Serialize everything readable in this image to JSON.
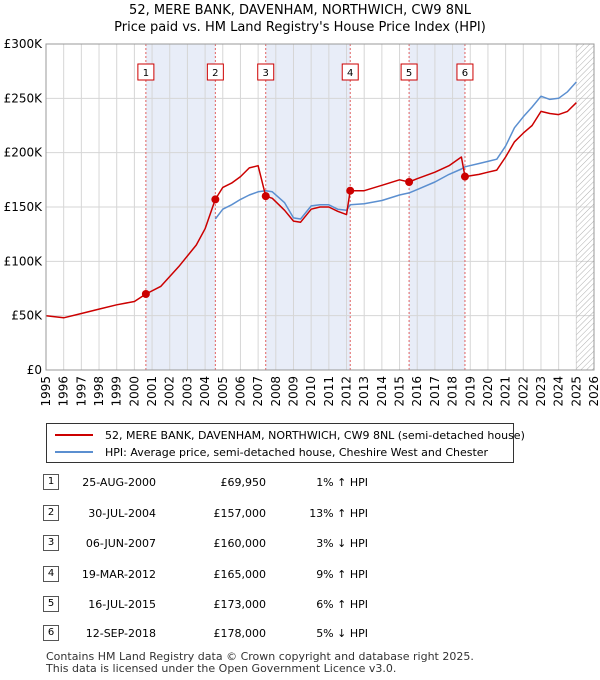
{
  "chart_data": {
    "type": "line",
    "title": "52, MERE BANK, DAVENHAM, NORTHWICH, CW9 8NL",
    "subtitle": "Price paid vs. HM Land Registry's House Price Index (HPI)",
    "xlabel": "",
    "ylabel": "",
    "xlim": [
      1995,
      2026
    ],
    "ylim": [
      0,
      300000
    ],
    "x_ticks": [
      "1995",
      "1996",
      "1997",
      "1998",
      "1999",
      "2000",
      "2001",
      "2002",
      "2003",
      "2004",
      "2005",
      "2006",
      "2007",
      "2008",
      "2009",
      "2010",
      "2011",
      "2012",
      "2013",
      "2014",
      "2015",
      "2016",
      "2017",
      "2018",
      "2019",
      "2020",
      "2021",
      "2022",
      "2023",
      "2024",
      "2025",
      "2026"
    ],
    "y_ticks": [
      {
        "value": 0,
        "label": "£0"
      },
      {
        "value": 50000,
        "label": "£50K"
      },
      {
        "value": 100000,
        "label": "£100K"
      },
      {
        "value": 150000,
        "label": "£150K"
      },
      {
        "value": 200000,
        "label": "£200K"
      },
      {
        "value": 250000,
        "label": "£250K"
      },
      {
        "value": 300000,
        "label": "£300K"
      }
    ],
    "grid": true,
    "future_hatch_from": 2025.0,
    "series": [
      {
        "name": "52, MERE BANK, DAVENHAM, NORTHWICH, CW9 8NL (semi-detached house)",
        "color": "#cc0000",
        "x": [
          1995.0,
          1996.0,
          1997.0,
          1998.0,
          1999.0,
          2000.0,
          2000.65,
          2001.5,
          2002.5,
          2003.5,
          2004.0,
          2004.58,
          2005.0,
          2005.5,
          2006.0,
          2006.5,
          2007.0,
          2007.43,
          2007.8,
          2008.5,
          2009.0,
          2009.4,
          2010.0,
          2010.5,
          2011.0,
          2011.5,
          2012.0,
          2012.21,
          2013.0,
          2014.0,
          2015.0,
          2015.54,
          2016.0,
          2017.0,
          2017.8,
          2018.5,
          2018.7,
          2019.5,
          2020.0,
          2020.5,
          2021.0,
          2021.5,
          2022.0,
          2022.5,
          2023.0,
          2023.5,
          2024.0,
          2024.5,
          2025.0
        ],
        "y": [
          50000,
          48000,
          52000,
          56000,
          60000,
          63000,
          69950,
          77000,
          95000,
          115000,
          130000,
          157000,
          168000,
          172000,
          178000,
          186000,
          188000,
          160000,
          158000,
          147000,
          137000,
          136000,
          148000,
          150000,
          150000,
          146000,
          143000,
          165000,
          165000,
          170000,
          175000,
          173000,
          176000,
          182000,
          188000,
          196000,
          178000,
          180000,
          182000,
          184000,
          196000,
          210000,
          218000,
          225000,
          238000,
          236000,
          235000,
          238000,
          246000
        ]
      },
      {
        "name": "HPI: Average price, semi-detached house, Cheshire West and Chester",
        "color": "#5b8fd0",
        "x": [
          2004.58,
          2005.0,
          2005.5,
          2006.0,
          2006.5,
          2007.0,
          2007.43,
          2007.8,
          2008.5,
          2009.0,
          2009.4,
          2010.0,
          2010.5,
          2011.0,
          2011.5,
          2012.0,
          2012.21,
          2013.0,
          2014.0,
          2015.0,
          2015.54,
          2016.0,
          2017.0,
          2017.8,
          2018.5,
          2018.7,
          2019.5,
          2020.0,
          2020.5,
          2021.0,
          2021.5,
          2022.0,
          2022.5,
          2023.0,
          2023.5,
          2024.0,
          2024.5,
          2025.0
        ],
        "y": [
          139000,
          148000,
          152000,
          157000,
          161000,
          164000,
          165000,
          164000,
          154000,
          140000,
          139000,
          151000,
          152000,
          152000,
          148000,
          147000,
          152000,
          153000,
          156000,
          161000,
          163000,
          166000,
          173000,
          180000,
          185000,
          187000,
          190000,
          192000,
          194000,
          206000,
          223000,
          233000,
          242000,
          252000,
          249000,
          250000,
          256000,
          265000
        ]
      }
    ],
    "sale_markers": [
      {
        "label": "1",
        "x": 2000.65,
        "y": 69950
      },
      {
        "label": "2",
        "x": 2004.58,
        "y": 157000
      },
      {
        "label": "3",
        "x": 2007.43,
        "y": 160000
      },
      {
        "label": "4",
        "x": 2012.21,
        "y": 165000
      },
      {
        "label": "5",
        "x": 2015.54,
        "y": 173000
      },
      {
        "label": "6",
        "x": 2018.7,
        "y": 178000
      }
    ],
    "shaded_ranges": [
      [
        2000.65,
        2004.58
      ],
      [
        2007.43,
        2012.21
      ],
      [
        2015.54,
        2018.7
      ]
    ]
  },
  "legend": {
    "property_label": "52, MERE BANK, DAVENHAM, NORTHWICH, CW9 8NL (semi-detached house)",
    "hpi_label": "HPI: Average price, semi-detached house, Cheshire West and Chester"
  },
  "transactions": [
    {
      "num": "1",
      "date": "25-AUG-2000",
      "price": "£69,950",
      "hpi": "1% ↑ HPI"
    },
    {
      "num": "2",
      "date": "30-JUL-2004",
      "price": "£157,000",
      "hpi": "13% ↑ HPI"
    },
    {
      "num": "3",
      "date": "06-JUN-2007",
      "price": "£160,000",
      "hpi": "3% ↓ HPI"
    },
    {
      "num": "4",
      "date": "19-MAR-2012",
      "price": "£165,000",
      "hpi": "9% ↑ HPI"
    },
    {
      "num": "5",
      "date": "16-JUL-2015",
      "price": "£173,000",
      "hpi": "6% ↑ HPI"
    },
    {
      "num": "6",
      "date": "12-SEP-2018",
      "price": "£178,000",
      "hpi": "5% ↓ HPI"
    }
  ],
  "footer": {
    "line1": "Contains HM Land Registry data © Crown copyright and database right 2025.",
    "line2": "This data is licensed under the Open Government Licence v3.0."
  }
}
